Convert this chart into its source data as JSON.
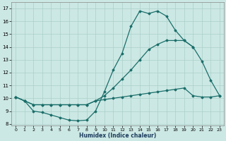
{
  "xlabel": "Humidex (Indice chaleur)",
  "background_color": "#cce8e4",
  "grid_color": "#aacfca",
  "line_color": "#1a6e6a",
  "xlim": [
    -0.5,
    23.5
  ],
  "ylim": [
    7.9,
    17.5
  ],
  "yticks": [
    8,
    9,
    10,
    11,
    12,
    13,
    14,
    15,
    16,
    17
  ],
  "xticks": [
    0,
    1,
    2,
    3,
    4,
    5,
    6,
    7,
    8,
    9,
    10,
    11,
    12,
    13,
    14,
    15,
    16,
    17,
    18,
    19,
    20,
    21,
    22,
    23
  ],
  "line1_x": [
    0,
    1,
    2,
    3,
    4,
    5,
    6,
    7,
    8,
    9,
    10,
    11,
    12,
    13,
    14,
    15,
    16,
    17,
    18,
    19,
    20,
    21,
    22,
    23
  ],
  "line1_y": [
    10.1,
    9.8,
    9.0,
    8.9,
    8.7,
    8.5,
    8.3,
    8.25,
    8.3,
    9.0,
    10.5,
    12.2,
    13.5,
    15.6,
    16.8,
    16.6,
    16.8,
    16.4,
    15.3,
    14.5,
    14.0,
    12.9,
    11.4,
    10.2
  ],
  "line2_x": [
    0,
    1,
    2,
    3,
    4,
    5,
    6,
    7,
    8,
    9,
    10,
    11,
    12,
    13,
    14,
    15,
    16,
    17,
    18,
    19,
    20
  ],
  "line2_y": [
    10.1,
    9.8,
    9.5,
    9.5,
    9.5,
    9.5,
    9.5,
    9.5,
    9.5,
    9.8,
    10.2,
    10.8,
    11.5,
    12.2,
    13.0,
    13.8,
    14.2,
    14.5,
    14.5,
    14.5,
    14.0
  ],
  "line3_x": [
    0,
    1,
    2,
    3,
    4,
    5,
    6,
    7,
    8,
    9,
    10,
    11,
    12,
    13,
    14,
    15,
    16,
    17,
    18,
    19,
    20,
    21,
    22,
    23
  ],
  "line3_y": [
    10.1,
    9.8,
    9.5,
    9.5,
    9.5,
    9.5,
    9.5,
    9.5,
    9.5,
    9.8,
    9.9,
    10.0,
    10.1,
    10.2,
    10.3,
    10.4,
    10.5,
    10.6,
    10.7,
    10.8,
    10.2,
    10.1,
    10.1,
    10.2
  ]
}
